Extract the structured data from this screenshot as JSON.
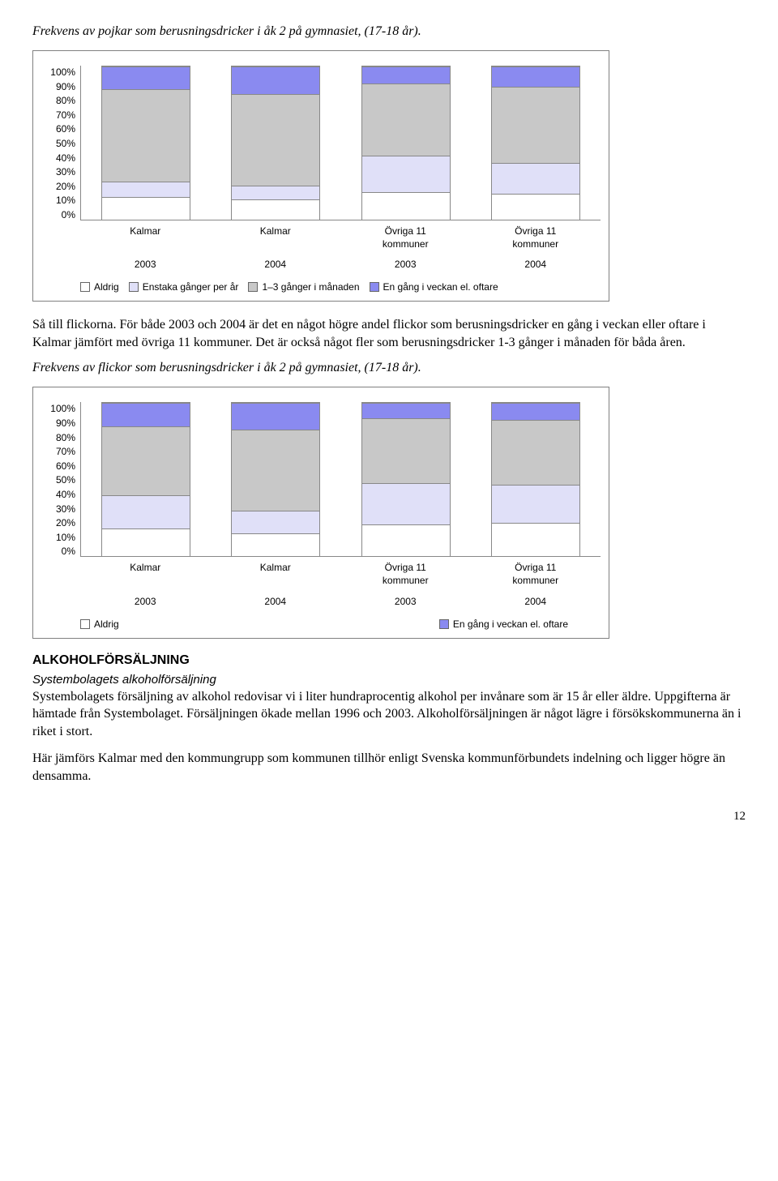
{
  "title1": "Frekvens av pojkar som berusningsdricker i åk 2 på gymnasiet, (17-18 år).",
  "chart1": {
    "ylabels": [
      "100%",
      "90%",
      "80%",
      "70%",
      "60%",
      "50%",
      "40%",
      "30%",
      "20%",
      "10%",
      "0%"
    ],
    "xlabels": [
      "Kalmar",
      "Kalmar",
      "Övriga 11\nkommuner",
      "Övriga 11\nkommuner"
    ],
    "years": [
      "2003",
      "2004",
      "2003",
      "2004"
    ],
    "colors": {
      "aldrig": "#ffffff",
      "enstaka": "#e0e0f8",
      "manaden": "#c8c8c8",
      "veckan": "#8a8af0"
    },
    "bars": [
      {
        "aldrig": 15,
        "enstaka": 10,
        "manaden": 60,
        "veckan": 15
      },
      {
        "aldrig": 13,
        "enstaka": 9,
        "manaden": 60,
        "veckan": 18
      },
      {
        "aldrig": 18,
        "enstaka": 24,
        "manaden": 47,
        "veckan": 11
      },
      {
        "aldrig": 17,
        "enstaka": 20,
        "manaden": 50,
        "veckan": 13
      }
    ],
    "legend": [
      {
        "key": "aldrig",
        "label": "Aldrig"
      },
      {
        "key": "enstaka",
        "label": "Enstaka gånger per år"
      },
      {
        "key": "manaden",
        "label": "1–3 gånger i månaden"
      },
      {
        "key": "veckan",
        "label": "En gång i veckan el. oftare"
      }
    ]
  },
  "para1": "Så till flickorna. För både 2003 och 2004 är det en något högre andel flickor som berusningsdricker en gång i veckan eller oftare i Kalmar jämfört med övriga 11 kommuner. Det är också något fler som berusningsdricker 1-3 gånger i månaden för båda åren.",
  "title2": "Frekvens av flickor som berusningsdricker i åk 2 på gymnasiet, (17-18 år).",
  "chart2": {
    "ylabels": [
      "100%",
      "90%",
      "80%",
      "70%",
      "60%",
      "50%",
      "40%",
      "30%",
      "20%",
      "10%",
      "0%"
    ],
    "xlabels": [
      "Kalmar",
      "Kalmar",
      "Övriga 11\nkommuner",
      "Övriga 11\nkommuner"
    ],
    "years": [
      "2003",
      "2004",
      "2003",
      "2004"
    ],
    "colors": {
      "aldrig": "#ffffff",
      "enstaka": "#e0e0f8",
      "manaden": "#c8c8c8",
      "veckan": "#8a8af0"
    },
    "bars": [
      {
        "aldrig": 18,
        "enstaka": 22,
        "manaden": 45,
        "veckan": 15
      },
      {
        "aldrig": 15,
        "enstaka": 15,
        "manaden": 53,
        "veckan": 17
      },
      {
        "aldrig": 21,
        "enstaka": 27,
        "manaden": 42,
        "veckan": 10
      },
      {
        "aldrig": 22,
        "enstaka": 25,
        "manaden": 42,
        "veckan": 11
      }
    ],
    "legend": [
      {
        "key": "aldrig",
        "label": "Aldrig"
      },
      {
        "key": "veckan",
        "label": "En gång i veckan el. oftare"
      }
    ]
  },
  "section_heading": "ALKOHOLFÖRSÄLJNING",
  "sub_heading": "Systembolagets alkoholförsäljning",
  "para2": "Systembolagets försäljning av alkohol redovisar vi i liter hundraprocentig alkohol per invånare som är 15 år eller äldre. Uppgifterna är hämtade från Systembolaget. Försäljningen ökade mellan 1996 och 2003. Alkoholförsäljningen är något lägre i försökskommunerna än i riket i stort.",
  "para3": "Här jämförs Kalmar med den kommungrupp som kommunen tillhör enligt Svenska kommunförbundets indelning och ligger högre än densamma.",
  "pagenum": "12"
}
